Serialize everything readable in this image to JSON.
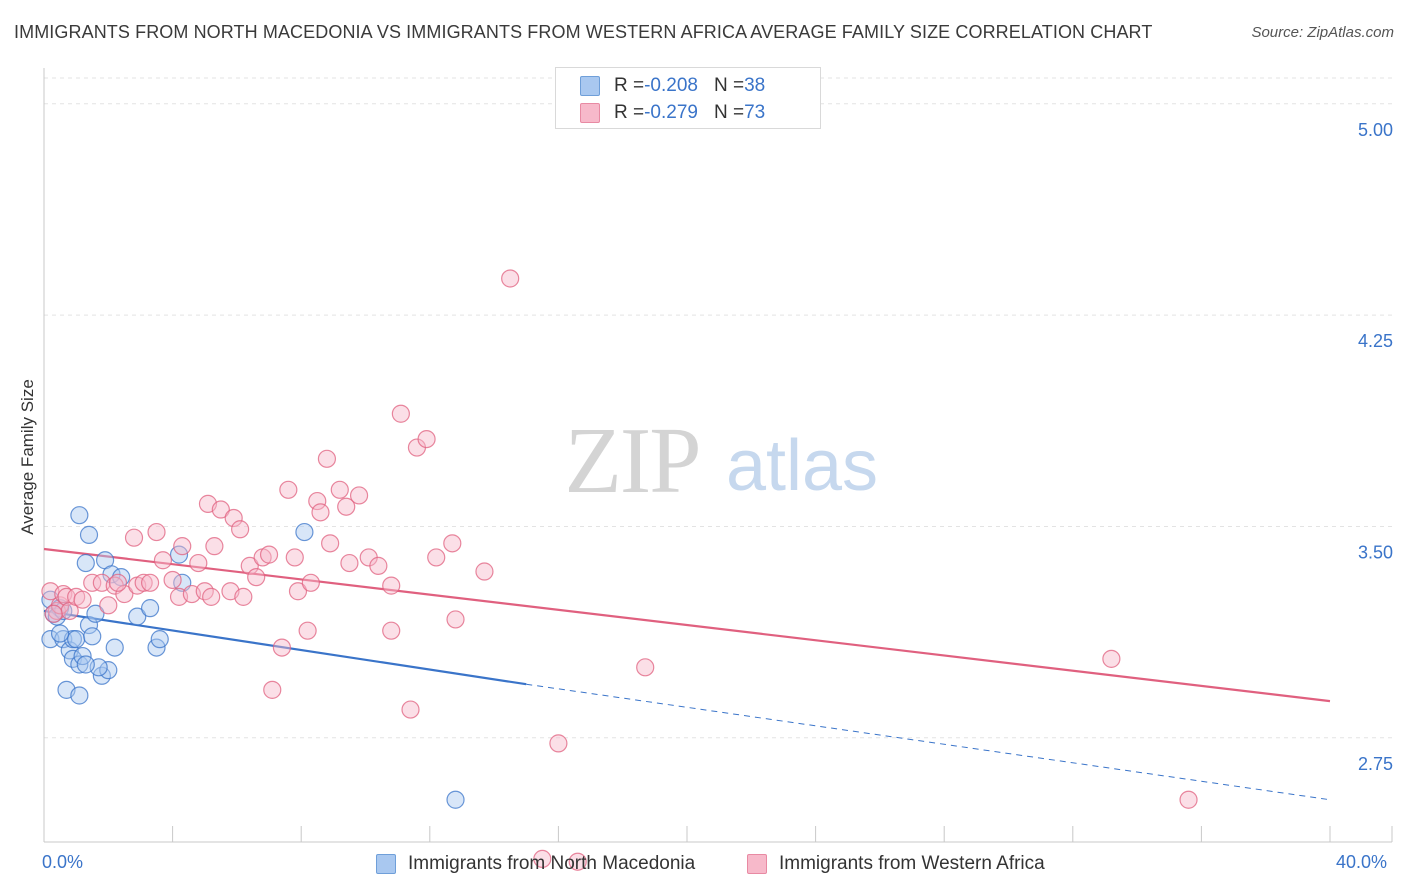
{
  "title": "IMMIGRANTS FROM NORTH MACEDONIA VS IMMIGRANTS FROM WESTERN AFRICA AVERAGE FAMILY SIZE CORRELATION CHART",
  "source": "Source: ZipAtlas.com",
  "watermark": {
    "zip": "ZIP",
    "atlas": "atlas"
  },
  "legend_top": [
    {
      "r_label": "R = ",
      "r_value": "-0.208",
      "n_label": "N = ",
      "n_value": "38"
    },
    {
      "r_label": "R = ",
      "r_value": "-0.279",
      "n_label": "N = ",
      "n_value": "73"
    }
  ],
  "colors": {
    "blue": "#3a74c9",
    "blue_fill": "#a9c8f0",
    "pink": "#e0607f",
    "pink_fill": "#f7b9ca",
    "grid": "#e3e3e3",
    "tick_text": "#3a74c9"
  },
  "chart_data": {
    "type": "scatter",
    "title": "IMMIGRANTS FROM NORTH MACEDONIA VS IMMIGRANTS FROM WESTERN AFRICA AVERAGE FAMILY SIZE CORRELATION CHART",
    "xlabel": "",
    "ylabel": "Average Family Size",
    "xlim": [
      0,
      40
    ],
    "ylim": [
      2.38,
      5.12
    ],
    "x_tick_labels": [
      "0.0%",
      "40.0%"
    ],
    "y_ticks": [
      2.75,
      3.5,
      4.25,
      5.0
    ],
    "y_tick_labels": [
      "2.75",
      "3.50",
      "4.25",
      "5.00"
    ],
    "grid": true,
    "series": [
      {
        "name": "Immigrants from North Macedonia",
        "color": "blue",
        "points": [
          [
            0.2,
            3.24
          ],
          [
            0.2,
            3.1
          ],
          [
            0.3,
            3.19
          ],
          [
            0.5,
            3.21
          ],
          [
            0.6,
            3.1
          ],
          [
            0.7,
            2.92
          ],
          [
            0.8,
            3.06
          ],
          [
            0.9,
            3.1
          ],
          [
            0.9,
            3.03
          ],
          [
            1.0,
            3.1
          ],
          [
            1.1,
            3.01
          ],
          [
            1.1,
            3.54
          ],
          [
            1.1,
            2.9
          ],
          [
            1.2,
            3.04
          ],
          [
            1.3,
            3.37
          ],
          [
            1.4,
            3.47
          ],
          [
            1.4,
            3.15
          ],
          [
            1.5,
            3.11
          ],
          [
            1.6,
            3.19
          ],
          [
            1.8,
            2.97
          ],
          [
            1.9,
            3.38
          ],
          [
            2.0,
            2.99
          ],
          [
            2.1,
            3.33
          ],
          [
            2.2,
            3.07
          ],
          [
            2.4,
            3.32
          ],
          [
            2.9,
            3.18
          ],
          [
            3.3,
            3.21
          ],
          [
            3.5,
            3.07
          ],
          [
            3.6,
            3.1
          ],
          [
            4.2,
            3.4
          ],
          [
            4.3,
            3.3
          ],
          [
            8.1,
            3.48
          ],
          [
            12.8,
            2.53
          ],
          [
            0.4,
            3.18
          ],
          [
            0.6,
            3.2
          ],
          [
            1.7,
            3.0
          ],
          [
            1.3,
            3.01
          ],
          [
            0.5,
            3.12
          ]
        ],
        "trend_solid": {
          "x": [
            0.0,
            15.0
          ],
          "y": [
            3.2,
            2.94
          ]
        },
        "trend_dashed": {
          "x": [
            15.0,
            40.0
          ],
          "y": [
            2.94,
            2.53
          ]
        }
      },
      {
        "name": "Immigrants from Western Africa",
        "color": "pink",
        "points": [
          [
            0.2,
            3.27
          ],
          [
            0.4,
            3.2
          ],
          [
            0.5,
            3.22
          ],
          [
            0.6,
            3.26
          ],
          [
            0.7,
            3.25
          ],
          [
            0.8,
            3.2
          ],
          [
            1.0,
            3.25
          ],
          [
            1.2,
            3.24
          ],
          [
            1.5,
            3.3
          ],
          [
            1.8,
            3.3
          ],
          [
            2.0,
            3.22
          ],
          [
            2.2,
            3.29
          ],
          [
            2.5,
            3.26
          ],
          [
            2.8,
            3.46
          ],
          [
            2.9,
            3.29
          ],
          [
            3.1,
            3.3
          ],
          [
            3.3,
            3.3
          ],
          [
            3.5,
            3.48
          ],
          [
            3.7,
            3.38
          ],
          [
            4.0,
            3.31
          ],
          [
            4.2,
            3.25
          ],
          [
            4.3,
            3.43
          ],
          [
            4.6,
            3.26
          ],
          [
            4.8,
            3.37
          ],
          [
            5.0,
            3.27
          ],
          [
            5.1,
            3.58
          ],
          [
            5.2,
            3.25
          ],
          [
            5.3,
            3.43
          ],
          [
            5.5,
            3.56
          ],
          [
            5.8,
            3.27
          ],
          [
            5.9,
            3.53
          ],
          [
            6.1,
            3.49
          ],
          [
            6.2,
            3.25
          ],
          [
            6.4,
            3.36
          ],
          [
            6.6,
            3.32
          ],
          [
            6.8,
            3.39
          ],
          [
            7.0,
            3.4
          ],
          [
            7.1,
            2.92
          ],
          [
            7.4,
            3.07
          ],
          [
            7.6,
            3.63
          ],
          [
            7.8,
            3.39
          ],
          [
            7.9,
            3.27
          ],
          [
            8.2,
            3.13
          ],
          [
            8.3,
            3.3
          ],
          [
            8.5,
            3.59
          ],
          [
            8.6,
            3.55
          ],
          [
            8.8,
            3.74
          ],
          [
            8.9,
            3.44
          ],
          [
            9.2,
            3.63
          ],
          [
            9.4,
            3.57
          ],
          [
            9.5,
            3.37
          ],
          [
            9.8,
            3.61
          ],
          [
            10.1,
            3.39
          ],
          [
            10.4,
            3.36
          ],
          [
            10.8,
            3.29
          ],
          [
            10.8,
            3.13
          ],
          [
            11.1,
            3.9
          ],
          [
            11.4,
            2.85
          ],
          [
            11.6,
            3.78
          ],
          [
            11.9,
            3.81
          ],
          [
            12.2,
            3.39
          ],
          [
            12.7,
            3.44
          ],
          [
            12.8,
            3.17
          ],
          [
            13.7,
            3.34
          ],
          [
            14.5,
            4.38
          ],
          [
            15.5,
            2.32
          ],
          [
            16.0,
            2.73
          ],
          [
            16.6,
            2.31
          ],
          [
            18.7,
            3.0
          ],
          [
            33.2,
            3.03
          ],
          [
            35.6,
            2.53
          ],
          [
            0.3,
            3.19
          ],
          [
            2.3,
            3.3
          ]
        ],
        "trend_solid": {
          "x": [
            0.0,
            40.0
          ],
          "y": [
            3.42,
            2.88
          ]
        }
      }
    ]
  },
  "bottom_legend": [
    {
      "label": "Immigrants from North Macedonia"
    },
    {
      "label": "Immigrants from Western Africa"
    }
  ]
}
